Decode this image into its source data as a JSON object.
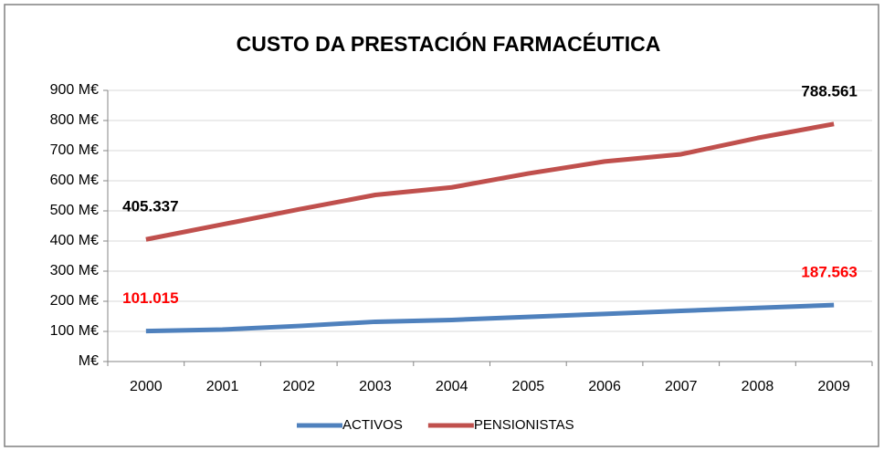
{
  "chart_data": {
    "type": "line",
    "title": "CUSTO DA PRESTACIÓN FARMACÉUTICA",
    "categories": [
      "2000",
      "2001",
      "2002",
      "2003",
      "2004",
      "2005",
      "2006",
      "2007",
      "2008",
      "2009"
    ],
    "series": [
      {
        "name": "ACTIVOS",
        "color": "#4f81bd",
        "label_color": "#ff0000",
        "values": [
          101.015,
          106,
          118,
          132,
          138,
          148,
          158,
          168,
          178,
          187.563
        ]
      },
      {
        "name": "PENSIONISTAS",
        "color": "#c0504d",
        "label_color": "#000000",
        "values": [
          405.337,
          455,
          505,
          553,
          578,
          624,
          664,
          688,
          742,
          788.561
        ]
      }
    ],
    "ylim": [
      0,
      900
    ],
    "yticks": [
      {
        "value": 0,
        "label": "M€"
      },
      {
        "value": 100,
        "label": "100  M€"
      },
      {
        "value": 200,
        "label": "200  M€"
      },
      {
        "value": 300,
        "label": "300  M€"
      },
      {
        "value": 400,
        "label": "400  M€"
      },
      {
        "value": 500,
        "label": "500  M€"
      },
      {
        "value": 600,
        "label": "600  M€"
      },
      {
        "value": 700,
        "label": "700  M€"
      },
      {
        "value": 800,
        "label": "800  M€"
      },
      {
        "value": 900,
        "label": "900  M€"
      }
    ],
    "grid": true,
    "legend": "bottom"
  }
}
